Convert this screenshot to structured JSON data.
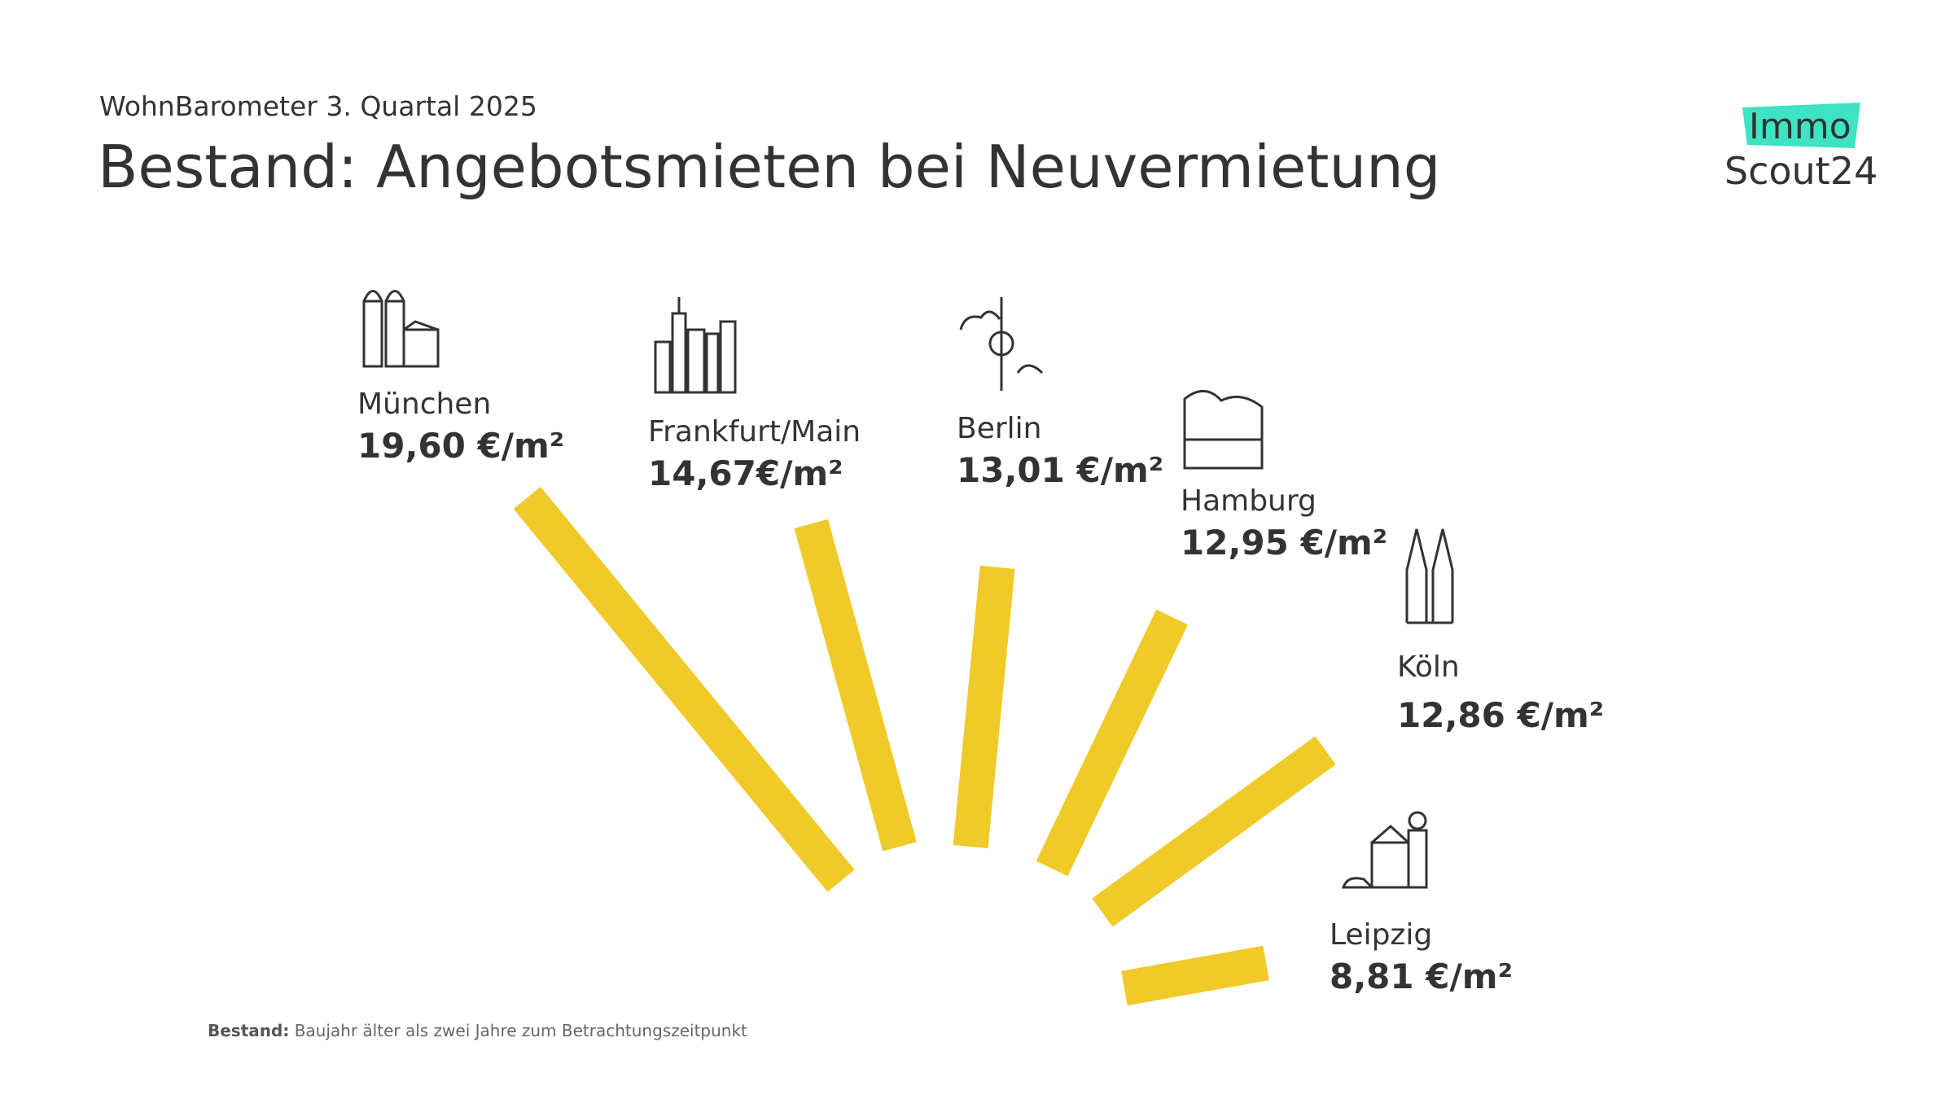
{
  "chart_data": {
    "type": "radial_bar",
    "subtitle": "WohnBarometer 3. Quartal 2025",
    "title": "Bestand: Angebotsmieten bei Neuvermietung",
    "categories": [
      "München",
      "Frankfurt/Main",
      "Berlin",
      "Hamburg",
      "Köln",
      "Leipzig"
    ],
    "values": [
      19.6,
      14.67,
      13.01,
      12.95,
      12.86,
      8.81
    ],
    "value_labels": [
      "19,60 €/m²",
      "14,67€/m²",
      "13,01 €/m²",
      "12,95 €/m²",
      "12,86 €/m²",
      "8,81 €/m²"
    ],
    "color": "#f0ca28",
    "footnote": {
      "label": "Bestand:",
      "text": "Baujahr älter als zwei Jahre zum Betrachtungszeitpunkt"
    }
  },
  "logo": {
    "top": "Immo",
    "bottom": "Scout24"
  }
}
